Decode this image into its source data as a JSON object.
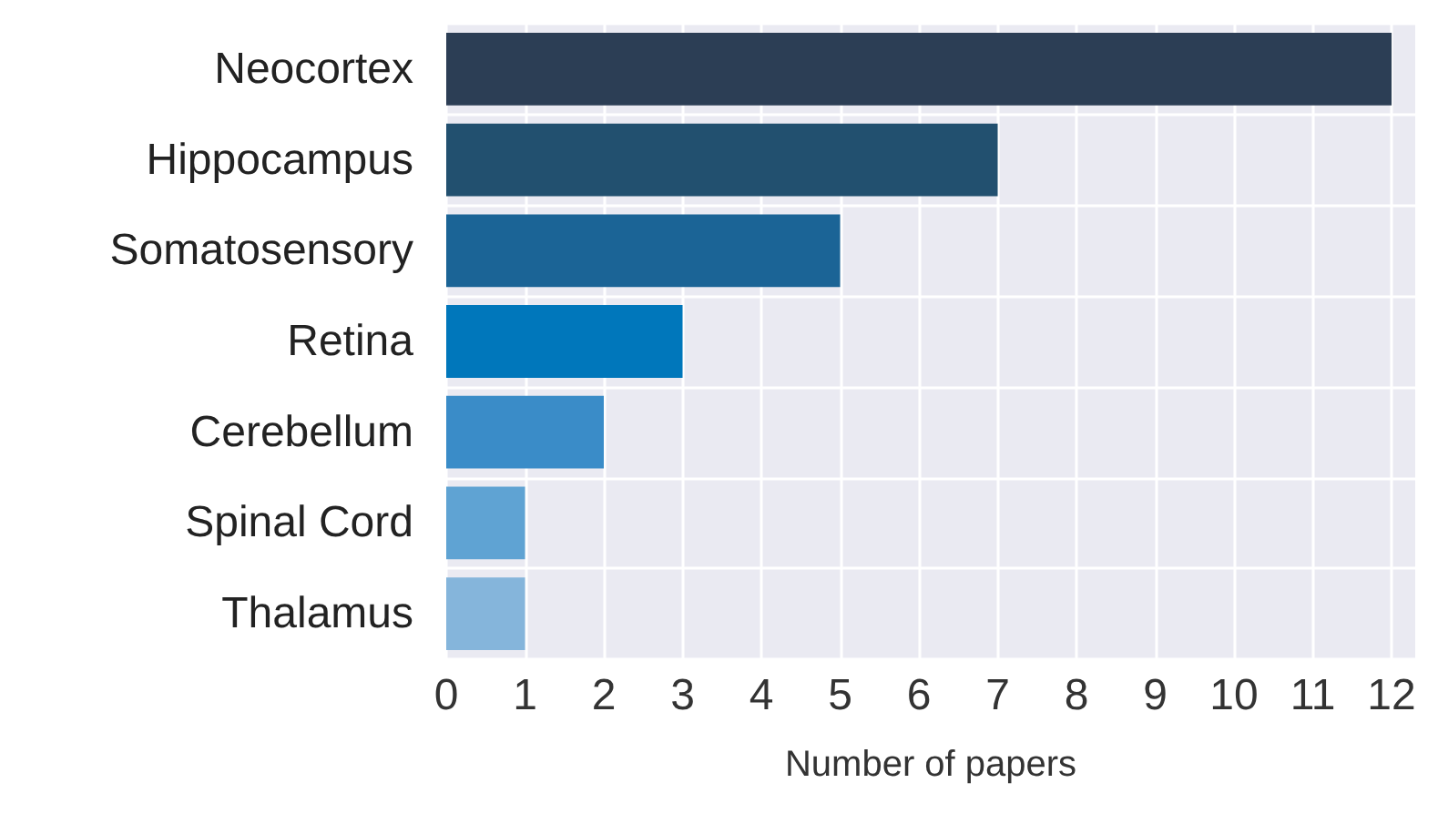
{
  "chart_data": {
    "type": "bar",
    "orientation": "horizontal",
    "xlabel": "Number of papers",
    "categories": [
      "Neocortex",
      "Hippocampus",
      "Somatosensory",
      "Retina",
      "Cerebellum",
      "Spinal Cord",
      "Thalamus"
    ],
    "values": [
      12,
      7,
      5,
      3,
      2,
      1,
      1
    ],
    "colors": [
      "#2c3e55",
      "#22506f",
      "#1b6496",
      "#0077bb",
      "#3a8cc8",
      "#5fa3d3",
      "#85b5db"
    ],
    "xlim": [
      0,
      12.3
    ],
    "xticks": [
      0,
      1,
      2,
      3,
      4,
      5,
      6,
      7,
      8,
      9,
      10,
      11,
      12
    ],
    "grid": true
  }
}
